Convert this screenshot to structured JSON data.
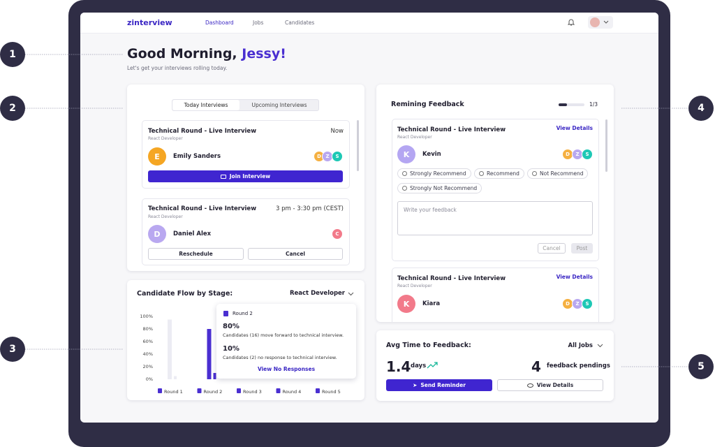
{
  "header": {
    "logo": "zinterview",
    "nav": [
      "Dashboard",
      "Jobs",
      "Candidates"
    ]
  },
  "greeting": {
    "title": "Good Morning,",
    "name": "Jessy!",
    "subtitle": "Let's get your interviews rolling today."
  },
  "annotations": [
    "1",
    "2",
    "3",
    "4",
    "5"
  ],
  "interviews": {
    "tabs": [
      "Today Interviews",
      "Upcoming Interviews"
    ],
    "items": [
      {
        "title": "Technical Round - Live Interview",
        "role": "React Developer",
        "time": "Now",
        "avatar": "E",
        "candidate": "Emily Sanders",
        "panel": [
          "D",
          "Z",
          "S"
        ],
        "actions": [
          "Join Interview"
        ]
      },
      {
        "title": "Technical Round - Live Interview",
        "role": "React Developer",
        "time": "3 pm - 3:30 pm (CEST)",
        "avatar": "D",
        "candidate": "Daniel Alex",
        "panel": [
          "C"
        ],
        "actions": [
          "Reschedule",
          "Cancel"
        ]
      }
    ]
  },
  "flow": {
    "title": "Candidate Flow by Stage:",
    "filter": "React Developer",
    "yticks": [
      {
        "value": 0,
        "label": "0%"
      },
      {
        "value": 20,
        "label": "20%"
      },
      {
        "value": 40,
        "label": "40%"
      },
      {
        "value": 60,
        "label": "60%"
      },
      {
        "value": 80,
        "label": "80%"
      },
      {
        "value": 100,
        "label": "100%"
      }
    ],
    "ylim": [
      0,
      100
    ],
    "rounds": [
      "Round 1",
      "Round 2",
      "Round 3",
      "Round 4",
      "Round 5"
    ],
    "bars": [
      {
        "values": [
          95,
          5
        ],
        "color": "#ececf3"
      },
      {
        "values": [
          80,
          10
        ],
        "color": "#4a2fd1"
      }
    ],
    "tooltip": {
      "round": "Round 2",
      "items": [
        {
          "value": "80%",
          "text": "Candidates (16) move forward to technical interview."
        },
        {
          "value": "10%",
          "text": "Candidates (2) no response to technical interview."
        }
      ],
      "link": "View No Responses"
    }
  },
  "feedback": {
    "title": "Remining Feedback",
    "progress": "1/3",
    "items": [
      {
        "title": "Technical Round - Live Interview",
        "role": "React Developer",
        "link": "View Details",
        "avatar": "K",
        "candidate": "Kevin",
        "panel": [
          "D",
          "Z",
          "S"
        ],
        "options": [
          "Strongly Recommend",
          "Recommend",
          "Not Recommend",
          "Strongly Not Recommend"
        ],
        "placeholder": "Write your feedback",
        "buttons": [
          "Cancel",
          "Post"
        ]
      },
      {
        "title": "Technical Round - Live Interview",
        "role": "React Developer",
        "link": "View Details",
        "avatar": "K",
        "candidate": "Kiara",
        "panel": [
          "D",
          "Z",
          "S"
        ]
      }
    ]
  },
  "avg": {
    "title": "Avg Time to Feedback:",
    "filter": "All Jobs",
    "value": "1.4",
    "unit": "days",
    "pending": "4",
    "pending_label": "feedback pendings",
    "buttons": [
      "Send Reminder",
      "View Details"
    ]
  }
}
